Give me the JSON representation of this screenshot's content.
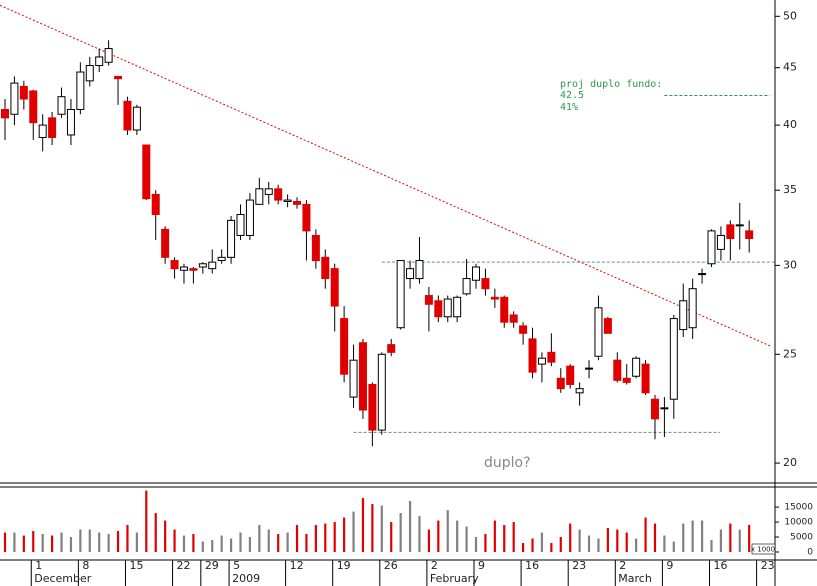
{
  "chart_data": {
    "type": "candlestick",
    "ylog": true,
    "ylim": [
      19.2,
      51.7
    ],
    "yticks": [
      20,
      25,
      30,
      35,
      40,
      45,
      50
    ],
    "up_color": "#ffffff",
    "down_color": "#e00000",
    "categories": [
      null,
      null,
      null,
      "1",
      null,
      null,
      null,
      null,
      "8",
      null,
      null,
      null,
      null,
      "15",
      null,
      null,
      null,
      null,
      "22",
      null,
      null,
      "29",
      null,
      null,
      "5",
      null,
      null,
      null,
      null,
      null,
      "12",
      null,
      null,
      null,
      null,
      "19",
      null,
      null,
      null,
      null,
      "26",
      null,
      null,
      null,
      null,
      "2",
      null,
      null,
      null,
      null,
      "9",
      null,
      null,
      null,
      null,
      "16",
      null,
      null,
      null,
      null,
      "23",
      null,
      null,
      null,
      null,
      "2",
      null,
      null,
      null,
      null,
      "9",
      null,
      null,
      null,
      null,
      "16",
      null,
      null,
      null,
      null,
      "23"
    ],
    "period_labels": [
      null,
      null,
      null,
      "December",
      null,
      null,
      null,
      null,
      null,
      null,
      null,
      null,
      null,
      null,
      null,
      null,
      null,
      null,
      null,
      null,
      null,
      null,
      null,
      null,
      "2009",
      null,
      null,
      null,
      null,
      null,
      null,
      null,
      null,
      null,
      null,
      null,
      null,
      null,
      null,
      null,
      null,
      null,
      null,
      null,
      null,
      "February",
      null,
      null,
      null,
      null,
      null,
      null,
      null,
      null,
      null,
      null,
      null,
      null,
      null,
      null,
      null,
      null,
      null,
      null,
      null,
      "March",
      null,
      null,
      null,
      null,
      null,
      null,
      null,
      null,
      null,
      null,
      null,
      null,
      null,
      null,
      null
    ],
    "open": [
      41.3,
      40.9,
      43.3,
      42.9,
      39,
      40.6,
      40.9,
      39.2,
      41.3,
      43.8,
      45.2,
      45.5,
      44.2,
      42,
      39.6,
      38.4,
      34.7,
      32.3,
      30.3,
      29.7,
      29.8,
      29.9,
      29.8,
      30.3,
      30.5,
      31.9,
      31.9,
      34,
      34.7,
      35.1,
      34.2,
      34.2,
      34,
      31.9,
      30.5,
      29.8,
      26.9,
      22.9,
      25.6,
      23.5,
      21.4,
      25.5,
      26.4,
      29.2,
      29.2,
      28.2,
      27.9,
      27,
      27,
      28.3,
      29.1,
      29.2,
      28.1,
      28.1,
      27.1,
      26.5,
      25.8,
      24.5,
      25.1,
      23.8,
      24.4,
      23.1,
      24.3,
      24.9,
      26.9,
      24.7,
      23.8,
      23.9,
      24.5,
      22.8,
      22.4,
      22.8,
      26.3,
      26.4,
      29.5,
      30.1,
      31,
      32.6,
      32.6,
      32.2,
      null
    ],
    "high": [
      42.2,
      44.2,
      43.8,
      43,
      40.9,
      41.1,
      43.2,
      42.2,
      45.5,
      46,
      46.8,
      47.6,
      44.2,
      42.4,
      41.7,
      38.4,
      35,
      32.5,
      30.5,
      30.1,
      29.9,
      30.2,
      31,
      31,
      33.2,
      34,
      34.8,
      35.9,
      35.6,
      35.4,
      34.7,
      34.5,
      34.3,
      32.3,
      31,
      30.1,
      27.6,
      25.5,
      25.8,
      23.6,
      25.1,
      25.8,
      30.3,
      30.3,
      31.8,
      28.7,
      28.2,
      28.2,
      28.2,
      30.4,
      30.1,
      29.8,
      28.6,
      28.2,
      27.3,
      26.7,
      26.4,
      25.1,
      26.1,
      24.3,
      24.5,
      23.6,
      24.7,
      28.2,
      27,
      25.1,
      24.5,
      24.9,
      24.7,
      23,
      22.9,
      27.1,
      28.9,
      29.2,
      29.8,
      32.3,
      32.5,
      32.9,
      34.1,
      32.9,
      null
    ],
    "low": [
      38.8,
      40,
      41.3,
      38.8,
      37.9,
      38.4,
      40.6,
      38.4,
      40.9,
      43.3,
      44.6,
      45.2,
      41.7,
      39.2,
      39.2,
      34.3,
      31.6,
      30.1,
      29.2,
      28.9,
      28.9,
      29.5,
      29.5,
      30.1,
      30.1,
      31.6,
      31.6,
      34,
      34,
      34,
      33.8,
      33.7,
      30.3,
      29.8,
      28.6,
      26.2,
      23.6,
      22.4,
      21.9,
      20.7,
      21.2,
      24.9,
      26.3,
      28.6,
      28.9,
      26.2,
      26.7,
      26.7,
      26.7,
      28.2,
      28.6,
      28.2,
      27.5,
      26.4,
      26.4,
      25.5,
      23.8,
      23.6,
      24.4,
      23.1,
      23.3,
      22.5,
      23.8,
      24.7,
      26.1,
      23.6,
      23.5,
      23.8,
      23,
      21,
      21.1,
      21.9,
      25.9,
      25.8,
      28.9,
      29.9,
      30.3,
      30.3,
      31,
      30.8,
      null
    ],
    "close": [
      40.6,
      43.6,
      42.2,
      40.2,
      40,
      39,
      42.4,
      41.3,
      44.6,
      45.2,
      46,
      46.8,
      44,
      39.6,
      41.5,
      34.4,
      33.3,
      30.5,
      29.8,
      29.9,
      29.7,
      30.1,
      30.2,
      30.5,
      32.9,
      33.3,
      34.3,
      35.1,
      35.1,
      34.3,
      34.3,
      34,
      32.2,
      30.3,
      29.2,
      27.6,
      24,
      24.7,
      22.3,
      21.4,
      25,
      25.1,
      30.3,
      29.8,
      30.3,
      27.7,
      27,
      28,
      28.1,
      29.2,
      29.9,
      28.6,
      28,
      26.7,
      26.7,
      26.1,
      24.1,
      24.8,
      24.6,
      23.3,
      23.5,
      23.3,
      24.3,
      27.5,
      26.1,
      23.7,
      23.6,
      24.8,
      23.1,
      21.9,
      22.4,
      26.9,
      27.9,
      28.6,
      29.5,
      32.2,
      31.9,
      31.7,
      32.6,
      31.7,
      null
    ],
    "trend_line": {
      "color": "#e00000",
      "from": {
        "x": 0,
        "y": 50.9
      },
      "to": {
        "x": 80,
        "y": 25.7
      }
    },
    "levels": [
      {
        "value": 30.2,
        "from": 40,
        "to": 81.7,
        "color": "#5a8fa0"
      },
      {
        "value": 21.3,
        "from": 37,
        "to": 75.9,
        "color": "#5a8fa0"
      }
    ],
    "target": {
      "value": 42.5,
      "label": "42.5",
      "from": 70,
      "to": 81.2,
      "color": "#2a9a4a",
      "title": "proj duplo fundo:",
      "pct": "41%"
    },
    "annotation": "duplo?",
    "volume": {
      "ylim": [
        0,
        21700
      ],
      "yticks": [
        0,
        5000,
        {
          "value": 10000,
          "label": "10000"
        },
        {
          "value": 15000,
          "label": "15000"
        }
      ],
      "unit_label": "x 1000",
      "up_color": "#808080",
      "down_color": "#e00000",
      "values": [
        6500,
        6500,
        5500,
        7000,
        6000,
        5500,
        6500,
        5000,
        7500,
        7500,
        6500,
        6000,
        7000,
        9000,
        6500,
        20500,
        13000,
        10500,
        7500,
        5500,
        6000,
        3500,
        4000,
        5500,
        4500,
        6500,
        5000,
        9000,
        7500,
        6000,
        6500,
        9000,
        6000,
        9000,
        9500,
        10000,
        11500,
        13500,
        18000,
        16000,
        15500,
        10000,
        13000,
        17000,
        12000,
        7500,
        10500,
        14000,
        10500,
        8500,
        5000,
        6000,
        10500,
        9000,
        10000,
        3000,
        4500,
        6500,
        3000,
        5000,
        9500,
        7500,
        5500,
        4500,
        8000,
        7500,
        6500,
        4500,
        11500,
        9500,
        5500,
        3500,
        9500,
        10500,
        10500,
        4000,
        7500,
        9500,
        7500,
        9000,
        null
      ]
    }
  }
}
